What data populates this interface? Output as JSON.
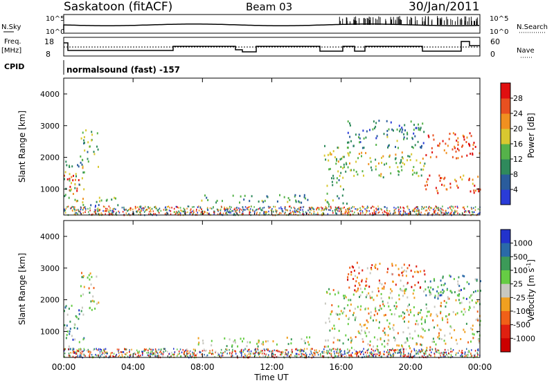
{
  "header": {
    "station": "Saskatoon (fitACF)",
    "beam": "Beam 03",
    "date": "30/Jan/2011"
  },
  "status_panels": {
    "nsky_label": "N.Sky",
    "nsky_ticks": [
      "10^5",
      "10^0"
    ],
    "nsearch_label": "N.Search",
    "nsearch_ticks": [
      "10^5",
      "10^0"
    ],
    "freq_label_line1": "Freq.",
    "freq_label_line2": "[MHz]",
    "freq_ticks": [
      "18",
      "8"
    ],
    "nave_label": "Nave",
    "nave_ticks": [
      "60",
      "0"
    ],
    "cpid_label": "CPID",
    "cpid_text": "normalsound (fast) -157"
  },
  "chart_data": [
    {
      "type": "heatmap",
      "name": "Power",
      "ylabel": "Slant Range [km]",
      "xlabel": "Time UT",
      "ylim": [
        180,
        4500
      ],
      "xlim": [
        0,
        24
      ],
      "yticks": [
        "1000",
        "2000",
        "3000",
        "4000"
      ],
      "xticks": [
        "00:00",
        "04:00",
        "08:00",
        "12:00",
        "16:00",
        "20:00",
        "00:00"
      ],
      "colorbar_label": "Power [dB]",
      "colorbar_ticks": [
        "4",
        "8",
        "12",
        "16",
        "20",
        "24",
        "28"
      ],
      "colorbar_colors": [
        "#2a3cd8",
        "#2a5c9c",
        "#2f8a5c",
        "#55b24a",
        "#d8c830",
        "#f09020",
        "#e85020",
        "#e01010"
      ],
      "regions": [
        {
          "t0": 0.0,
          "t1": 0.9,
          "r0": 900,
          "r1": 1500,
          "level": 0.92
        },
        {
          "t0": 0.0,
          "t1": 1.2,
          "r0": 450,
          "r1": 1900,
          "level": 0.45
        },
        {
          "t0": 0.9,
          "t1": 2.0,
          "r0": 1700,
          "r1": 2900,
          "level": 0.4
        },
        {
          "t0": 1.2,
          "t1": 3.1,
          "r0": 500,
          "r1": 800,
          "level": 0.3
        },
        {
          "t0": 7.4,
          "t1": 14.2,
          "r0": 600,
          "r1": 850,
          "level": 0.35
        },
        {
          "t0": 15.0,
          "t1": 16.3,
          "r0": 500,
          "r1": 2400,
          "level": 0.45
        },
        {
          "t0": 16.3,
          "t1": 20.8,
          "r0": 1400,
          "r1": 2200,
          "level": 0.5
        },
        {
          "t0": 16.3,
          "t1": 20.8,
          "r0": 2300,
          "r1": 3200,
          "level": 0.3
        },
        {
          "t0": 20.8,
          "t1": 24.0,
          "r0": 2000,
          "r1": 2800,
          "level": 0.85
        },
        {
          "t0": 20.8,
          "t1": 24.0,
          "r0": 900,
          "r1": 1500,
          "level": 0.8
        }
      ]
    },
    {
      "type": "heatmap",
      "name": "Velocity",
      "ylabel": "Slant Range [km]",
      "xlabel": "Time UT",
      "ylim": [
        180,
        4500
      ],
      "xlim": [
        0,
        24
      ],
      "yticks": [
        "1000",
        "2000",
        "3000",
        "4000"
      ],
      "xticks": [
        "00:00",
        "04:00",
        "08:00",
        "12:00",
        "16:00",
        "20:00",
        "00:00"
      ],
      "colorbar_label": "Velocity [m s",
      "colorbar_label_sup": "-1",
      "colorbar_ticks": [
        "1000",
        "500",
        "100",
        "25",
        "-25",
        "-100",
        "-500",
        "-1000"
      ],
      "colorbar_colors": [
        "#2233cc",
        "#2a6aa8",
        "#3c9a58",
        "#66cc44",
        "#c8c8c0",
        "#f0a020",
        "#f06018",
        "#e02010",
        "#cc0000"
      ],
      "regions": [
        {
          "t0": 0.0,
          "t1": 1.2,
          "r0": 450,
          "r1": 1900,
          "level": 0.7
        },
        {
          "t0": 0.9,
          "t1": 2.0,
          "r0": 1700,
          "r1": 2900,
          "level": 0.5
        },
        {
          "t0": 7.4,
          "t1": 14.2,
          "r0": 550,
          "r1": 850,
          "level": 0.55
        },
        {
          "t0": 15.0,
          "t1": 24.0,
          "r0": 500,
          "r1": 2400,
          "level": 0.5
        },
        {
          "t0": 16.3,
          "t1": 20.8,
          "r0": 2300,
          "r1": 3200,
          "level": 0.3
        },
        {
          "t0": 20.8,
          "t1": 24.0,
          "r0": 2000,
          "r1": 2800,
          "level": 0.7
        }
      ]
    }
  ]
}
